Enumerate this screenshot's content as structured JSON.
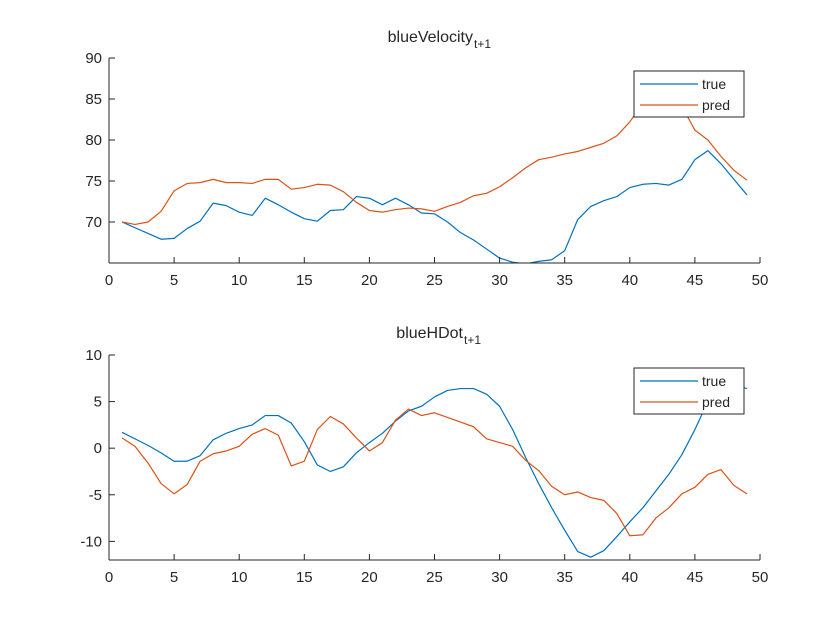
{
  "figure": {
    "background": "#ffffff",
    "axis_color": "#262626",
    "true_color": "#0072BD",
    "pred_color": "#D95319"
  },
  "chart_data": [
    {
      "type": "line",
      "title": "blueVelocity",
      "title_subscript": "t+1",
      "xlim": [
        0,
        50
      ],
      "ylim": [
        65,
        90
      ],
      "xticks": [
        0,
        5,
        10,
        15,
        20,
        25,
        30,
        35,
        40,
        45,
        50
      ],
      "yticks": [
        70,
        75,
        80,
        85,
        90
      ],
      "grid": false,
      "legend": "top-right",
      "x": [
        1,
        2,
        3,
        4,
        5,
        6,
        7,
        8,
        9,
        10,
        11,
        12,
        13,
        14,
        15,
        16,
        17,
        18,
        19,
        20,
        21,
        22,
        23,
        24,
        25,
        26,
        27,
        28,
        29,
        30,
        31,
        32,
        33,
        34,
        35,
        36,
        37,
        38,
        39,
        40,
        41,
        42,
        43,
        44,
        45,
        46,
        47,
        48,
        49
      ],
      "series": [
        {
          "name": "true",
          "color": "#0072BD",
          "values": [
            70.0,
            69.3,
            68.6,
            67.9,
            68.0,
            69.2,
            70.1,
            72.3,
            72.0,
            71.2,
            70.8,
            72.9,
            72.1,
            71.2,
            70.4,
            70.1,
            71.4,
            71.5,
            73.1,
            72.9,
            72.1,
            72.9,
            72.1,
            71.1,
            71.0,
            70.0,
            68.7,
            67.8,
            66.7,
            65.6,
            65.1,
            64.9,
            65.2,
            65.4,
            66.5,
            70.3,
            71.9,
            72.6,
            73.1,
            74.2,
            74.6,
            74.7,
            74.5,
            75.2,
            77.6,
            78.7,
            77.1,
            75.2,
            73.3
          ]
        },
        {
          "name": "pred",
          "color": "#D95319",
          "values": [
            70.0,
            69.7,
            70.0,
            71.3,
            73.8,
            74.7,
            74.8,
            75.2,
            74.8,
            74.8,
            74.7,
            75.2,
            75.2,
            74.0,
            74.2,
            74.6,
            74.5,
            73.7,
            72.4,
            71.4,
            71.2,
            71.5,
            71.7,
            71.6,
            71.3,
            71.9,
            72.4,
            73.2,
            73.5,
            74.3,
            75.4,
            76.6,
            77.6,
            77.9,
            78.3,
            78.6,
            79.1,
            79.6,
            80.5,
            82.2,
            84.5,
            85.9,
            85.8,
            84.1,
            81.2,
            80.0,
            78.0,
            76.3,
            75.1
          ]
        }
      ]
    },
    {
      "type": "line",
      "title": "blueHDot",
      "title_subscript": "t+1",
      "xlim": [
        0,
        50
      ],
      "ylim": [
        -12,
        10
      ],
      "xticks": [
        0,
        5,
        10,
        15,
        20,
        25,
        30,
        35,
        40,
        45,
        50
      ],
      "yticks": [
        -10,
        -5,
        0,
        5,
        10
      ],
      "grid": false,
      "legend": "top-right",
      "x": [
        1,
        2,
        3,
        4,
        5,
        6,
        7,
        8,
        9,
        10,
        11,
        12,
        13,
        14,
        15,
        16,
        17,
        18,
        19,
        20,
        21,
        22,
        23,
        24,
        25,
        26,
        27,
        28,
        29,
        30,
        31,
        32,
        33,
        34,
        35,
        36,
        37,
        38,
        39,
        40,
        41,
        42,
        43,
        44,
        45,
        46,
        47,
        48,
        49
      ],
      "series": [
        {
          "name": "true",
          "color": "#0072BD",
          "values": [
            1.7,
            1.0,
            0.3,
            -0.5,
            -1.4,
            -1.4,
            -0.8,
            0.9,
            1.6,
            2.1,
            2.5,
            3.5,
            3.5,
            2.7,
            0.7,
            -1.8,
            -2.5,
            -2.0,
            -0.5,
            0.6,
            1.6,
            2.9,
            4.0,
            4.5,
            5.5,
            6.2,
            6.4,
            6.4,
            5.8,
            4.5,
            2.0,
            -1.0,
            -3.8,
            -6.4,
            -8.8,
            -11.1,
            -11.7,
            -11.0,
            -9.5,
            -7.9,
            -6.4,
            -4.6,
            -2.8,
            -0.7,
            2.0,
            5.0,
            7.0,
            6.8,
            6.4
          ]
        },
        {
          "name": "pred",
          "color": "#D95319",
          "values": [
            1.1,
            0.2,
            -1.6,
            -3.8,
            -4.9,
            -3.9,
            -1.4,
            -0.6,
            -0.3,
            0.2,
            1.5,
            2.1,
            1.4,
            -1.9,
            -1.4,
            2.0,
            3.4,
            2.6,
            1.1,
            -0.3,
            0.6,
            3.0,
            4.2,
            3.5,
            3.8,
            3.3,
            2.8,
            2.3,
            1.0,
            0.6,
            0.2,
            -1.3,
            -2.4,
            -4.1,
            -5.0,
            -4.7,
            -5.3,
            -5.6,
            -7.0,
            -9.4,
            -9.3,
            -7.5,
            -6.4,
            -4.9,
            -4.2,
            -2.8,
            -2.3,
            -4.0,
            -4.9
          ]
        }
      ]
    }
  ]
}
